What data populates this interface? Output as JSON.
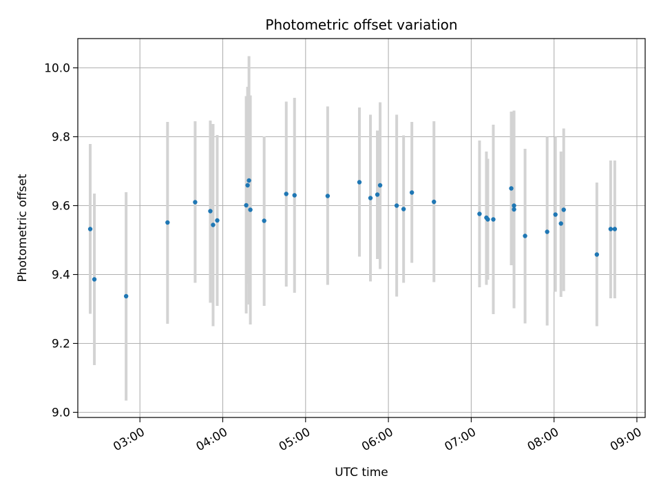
{
  "chart_data": {
    "type": "scatter",
    "title": "Photometric offset variation",
    "xlabel": "UTC time",
    "ylabel": "Photometric offset",
    "xlim": [
      "02:15",
      "09:06"
    ],
    "ylim": [
      8.985,
      10.085
    ],
    "x_ticks": [
      "03:00",
      "04:00",
      "05:00",
      "06:00",
      "07:00",
      "08:00",
      "09:00"
    ],
    "y_ticks": [
      "9.0",
      "9.2",
      "9.4",
      "9.6",
      "9.8",
      "10.0"
    ],
    "grid": true,
    "colors": {
      "point": "#1f77b4",
      "errorbar": "#d3d3d3",
      "grid": "#b0b0b0"
    },
    "points": [
      {
        "x": "02:24",
        "y": 9.532,
        "lo": 9.286,
        "hi": 9.779
      },
      {
        "x": "02:27",
        "y": 9.386,
        "lo": 9.137,
        "hi": 9.635
      },
      {
        "x": "02:50",
        "y": 9.337,
        "lo": 9.034,
        "hi": 9.639
      },
      {
        "x": "03:20",
        "y": 9.551,
        "lo": 9.257,
        "hi": 9.843
      },
      {
        "x": "03:40",
        "y": 9.61,
        "lo": 9.376,
        "hi": 9.845
      },
      {
        "x": "03:51",
        "y": 9.584,
        "lo": 9.318,
        "hi": 9.847
      },
      {
        "x": "03:53",
        "y": 9.544,
        "lo": 9.25,
        "hi": 9.837
      },
      {
        "x": "03:56",
        "y": 9.557,
        "lo": 9.309,
        "hi": 9.805
      },
      {
        "x": "04:17",
        "y": 9.601,
        "lo": 9.287,
        "hi": 9.918
      },
      {
        "x": "04:18",
        "y": 9.659,
        "lo": 9.373,
        "hi": 9.945
      },
      {
        "x": "04:19",
        "y": 9.673,
        "lo": 9.313,
        "hi": 10.034
      },
      {
        "x": "04:20",
        "y": 9.588,
        "lo": 9.255,
        "hi": 9.92
      },
      {
        "x": "04:30",
        "y": 9.556,
        "lo": 9.309,
        "hi": 9.801
      },
      {
        "x": "04:46",
        "y": 9.634,
        "lo": 9.365,
        "hi": 9.902
      },
      {
        "x": "04:52",
        "y": 9.63,
        "lo": 9.347,
        "hi": 9.913
      },
      {
        "x": "05:16",
        "y": 9.628,
        "lo": 9.37,
        "hi": 9.888
      },
      {
        "x": "05:39",
        "y": 9.668,
        "lo": 9.452,
        "hi": 9.885
      },
      {
        "x": "05:47",
        "y": 9.622,
        "lo": 9.38,
        "hi": 9.864
      },
      {
        "x": "05:52",
        "y": 9.632,
        "lo": 9.445,
        "hi": 9.818
      },
      {
        "x": "05:54",
        "y": 9.659,
        "lo": 9.416,
        "hi": 9.9
      },
      {
        "x": "06:06",
        "y": 9.6,
        "lo": 9.336,
        "hi": 9.864
      },
      {
        "x": "06:11",
        "y": 9.59,
        "lo": 9.376,
        "hi": 9.804
      },
      {
        "x": "06:17",
        "y": 9.638,
        "lo": 9.434,
        "hi": 9.843
      },
      {
        "x": "06:33",
        "y": 9.611,
        "lo": 9.378,
        "hi": 9.845
      },
      {
        "x": "07:06",
        "y": 9.576,
        "lo": 9.363,
        "hi": 9.789
      },
      {
        "x": "07:11",
        "y": 9.565,
        "lo": 9.37,
        "hi": 9.757
      },
      {
        "x": "07:12",
        "y": 9.56,
        "lo": 9.385,
        "hi": 9.736
      },
      {
        "x": "07:16",
        "y": 9.56,
        "lo": 9.285,
        "hi": 9.835
      },
      {
        "x": "07:29",
        "y": 9.65,
        "lo": 9.427,
        "hi": 9.873
      },
      {
        "x": "07:31",
        "y": 9.589,
        "lo": 9.302,
        "hi": 9.876
      },
      {
        "x": "07:31",
        "y": 9.6,
        "lo": 9.33,
        "hi": 9.87
      },
      {
        "x": "07:39",
        "y": 9.512,
        "lo": 9.258,
        "hi": 9.765
      },
      {
        "x": "07:55",
        "y": 9.524,
        "lo": 9.252,
        "hi": 9.8
      },
      {
        "x": "08:01",
        "y": 9.574,
        "lo": 9.35,
        "hi": 9.8
      },
      {
        "x": "08:05",
        "y": 9.548,
        "lo": 9.335,
        "hi": 9.757
      },
      {
        "x": "08:07",
        "y": 9.588,
        "lo": 9.352,
        "hi": 9.824
      },
      {
        "x": "08:31",
        "y": 9.458,
        "lo": 9.25,
        "hi": 9.667
      },
      {
        "x": "08:41",
        "y": 9.532,
        "lo": 9.331,
        "hi": 9.731
      },
      {
        "x": "08:44",
        "y": 9.532,
        "lo": 9.331,
        "hi": 9.731
      }
    ]
  }
}
